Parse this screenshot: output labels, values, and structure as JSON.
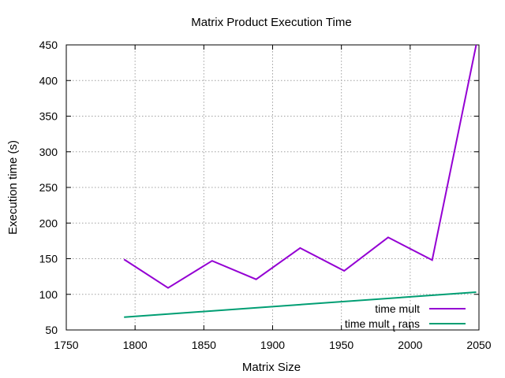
{
  "chart_data": {
    "type": "line",
    "title": "Matrix Product Execution Time",
    "xlabel": "Matrix Size",
    "ylabel": "Execution time (s)",
    "xlim": [
      1750,
      2050
    ],
    "ylim": [
      50,
      450
    ],
    "xticks": [
      1750,
      1800,
      1850,
      1900,
      1950,
      2000,
      2050
    ],
    "yticks": [
      50,
      100,
      150,
      200,
      250,
      300,
      350,
      400,
      450
    ],
    "grid": true,
    "legend_position": "bottom-right",
    "series": [
      {
        "name": "time mult",
        "color": "#9400d3",
        "x": [
          1792,
          1824,
          1856,
          1888,
          1920,
          1952,
          1984,
          2016,
          2048
        ],
        "y": [
          149,
          109,
          147,
          121,
          165,
          133,
          180,
          148,
          450
        ]
      },
      {
        "name": "time mult",
        "name_subscript": "t",
        "name_suffix": "rans",
        "color": "#009e73",
        "x": [
          1792,
          2048
        ],
        "y": [
          68,
          103
        ]
      }
    ]
  }
}
